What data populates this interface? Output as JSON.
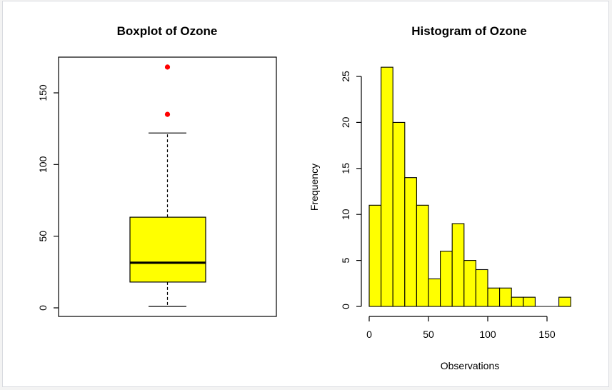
{
  "chart_data": [
    {
      "type": "boxplot",
      "title": "Boxplot of Ozone",
      "xlabel": "",
      "ylabel": "",
      "ylim": [
        -6,
        175
      ],
      "yticks": [
        0,
        50,
        100,
        150
      ],
      "ytick_labels": [
        "0",
        "50",
        "100",
        "150"
      ],
      "stats": {
        "lower_whisker": 1,
        "q1": 18,
        "median": 31.5,
        "q3": 63.25,
        "upper_whisker": 122
      },
      "outliers": [
        135,
        168
      ],
      "box_color": "#ffff00",
      "outlier_color": "#ff0000",
      "grid": false
    },
    {
      "type": "bar",
      "subtype": "histogram",
      "title": "Histogram of Ozone",
      "xlabel": "Observations",
      "ylabel": "Frequency",
      "bin_width": 10,
      "bin_edges": [
        0,
        10,
        20,
        30,
        40,
        50,
        60,
        70,
        80,
        90,
        100,
        110,
        120,
        130,
        140,
        150,
        160,
        170
      ],
      "categories": [
        "0-10",
        "10-20",
        "20-30",
        "30-40",
        "40-50",
        "50-60",
        "60-70",
        "70-80",
        "80-90",
        "90-100",
        "100-110",
        "110-120",
        "120-130",
        "130-140",
        "140-150",
        "150-160",
        "160-170"
      ],
      "values": [
        11,
        26,
        20,
        14,
        11,
        3,
        6,
        9,
        5,
        4,
        2,
        2,
        1,
        1,
        0,
        0,
        1
      ],
      "xticks": [
        0,
        50,
        100,
        150
      ],
      "xtick_labels": [
        "0",
        "50",
        "100",
        "150"
      ],
      "yticks": [
        0,
        5,
        10,
        15,
        20,
        25
      ],
      "ytick_labels": [
        "0",
        "5",
        "10",
        "15",
        "20",
        "25"
      ],
      "xlim": [
        0,
        170
      ],
      "ylim": [
        0,
        26
      ],
      "bar_color": "#ffff00",
      "grid": false
    }
  ]
}
